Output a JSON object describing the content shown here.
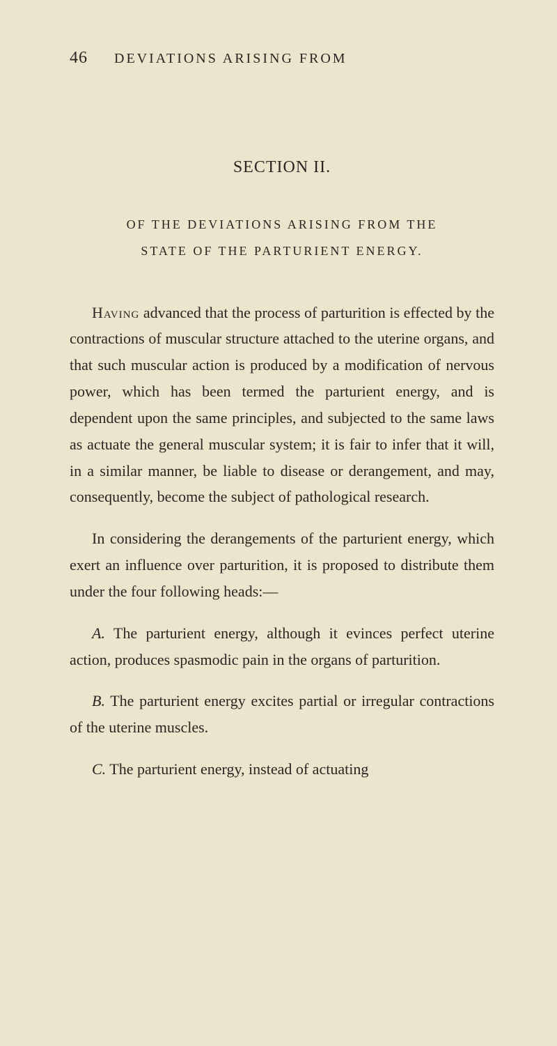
{
  "page_number": "46",
  "running_header": "DEVIATIONS ARISING FROM",
  "section_title": "SECTION II.",
  "subtitle_line1": "OF THE DEVIATIONS ARISING FROM THE",
  "subtitle_line2": "STATE OF THE PARTURIENT ENERGY.",
  "para1_lead": "Having",
  "para1_rest": " advanced that the process of parturition is effected by the contractions of muscular structure attached to the uterine organs, and that such muscular action is produced by a modification of nervous power, which has been termed the parturient energy, and is dependent upon the same principles, and subjected to the same laws as actuate the general muscular system; it is fair to infer that it will, in a similar manner, be liable to disease or derangement, and may, consequently, become the subject of pathological research.",
  "para2": "In considering the derangements of the parturient energy, which exert an influence over parturition, it is proposed to distribute them under the four following heads:—",
  "itemA_letter": "A.",
  "itemA_text": " The parturient energy, although it evinces perfect uterine action, produces spasmodic pain in the organs of parturition.",
  "itemB_letter": "B.",
  "itemB_text": " The parturient energy excites partial or irregular contractions of the uterine muscles.",
  "itemC_letter": "C.",
  "itemC_text": " The parturient energy, instead of actuating"
}
